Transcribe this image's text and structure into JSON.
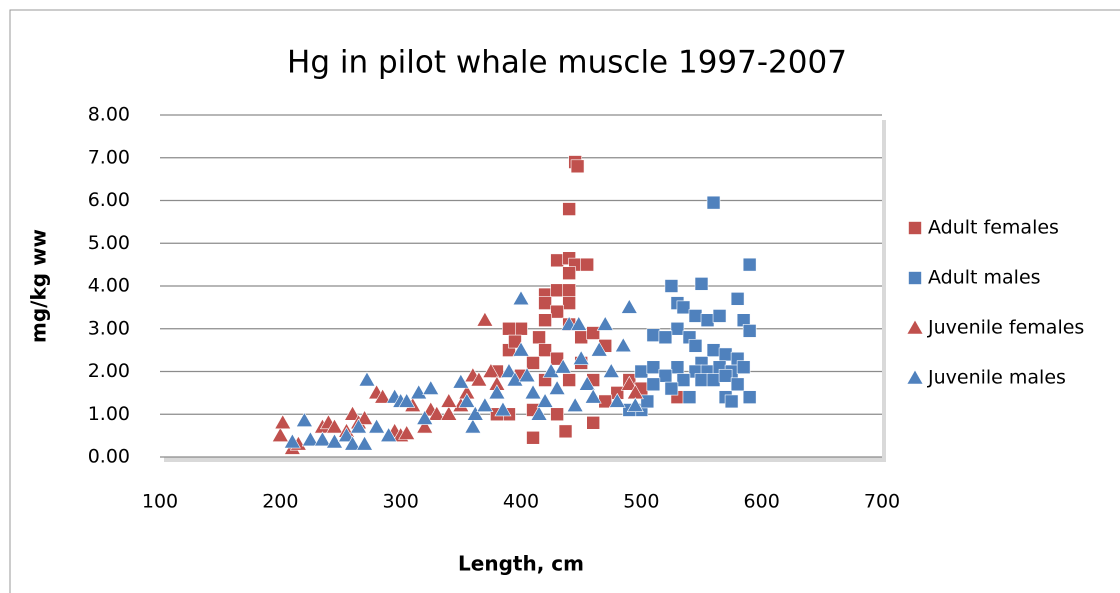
{
  "chart_data": {
    "type": "scatter",
    "title": "Hg in pilot whale muscle 1997-2007",
    "x_label": "Length, cm",
    "y_label": "mg/kg ww",
    "xlim": [
      100,
      700
    ],
    "xticks": [
      100,
      200,
      300,
      400,
      500,
      600,
      700
    ],
    "ylim": [
      0,
      8
    ],
    "yticks": [
      {
        "value": 0,
        "label": "0.00"
      },
      {
        "value": 1,
        "label": "1.00"
      },
      {
        "value": 2,
        "label": "2.00"
      },
      {
        "value": 3,
        "label": "3.00"
      },
      {
        "value": 4,
        "label": "4.00"
      },
      {
        "value": 5,
        "label": "5.00"
      },
      {
        "value": 6,
        "label": "6.00"
      },
      {
        "value": 7,
        "label": "7.00"
      },
      {
        "value": 8,
        "label": "8.00"
      }
    ],
    "grid": true,
    "legend": "right",
    "series": [
      {
        "name": "Adult females",
        "color": "#c0504d",
        "marker": "square",
        "x": [
          445,
          447,
          440,
          430,
          440,
          445,
          455,
          440,
          420,
          430,
          440,
          420,
          440,
          430,
          420,
          440,
          400,
          390,
          415,
          450,
          460,
          470,
          390,
          420,
          410,
          430,
          450,
          380,
          400,
          420,
          440,
          460,
          490,
          500,
          480,
          530,
          390,
          410,
          380,
          430,
          410,
          437,
          460,
          470,
          395
        ],
        "values": [
          6.9,
          6.8,
          5.8,
          4.6,
          4.65,
          4.5,
          4.5,
          4.3,
          3.8,
          3.9,
          3.9,
          3.6,
          3.6,
          3.4,
          3.2,
          3.1,
          3.0,
          3.0,
          2.8,
          2.8,
          2.9,
          2.6,
          2.5,
          2.5,
          2.2,
          2.3,
          2.2,
          2.0,
          1.9,
          1.8,
          1.8,
          1.8,
          1.8,
          1.6,
          1.5,
          1.4,
          1.0,
          1.1,
          1.0,
          1.0,
          0.45,
          0.6,
          0.8,
          1.3,
          2.7
        ]
      },
      {
        "name": "Adult males",
        "color": "#4f81bd",
        "marker": "square",
        "x": [
          560,
          590,
          525,
          550,
          530,
          535,
          580,
          545,
          555,
          565,
          585,
          590,
          530,
          540,
          510,
          520,
          545,
          560,
          570,
          580,
          550,
          500,
          510,
          530,
          545,
          555,
          565,
          575,
          585,
          520,
          535,
          550,
          560,
          570,
          510,
          525,
          540,
          570,
          575,
          590,
          500,
          505,
          580,
          490
        ],
        "values": [
          5.95,
          4.5,
          4.0,
          4.05,
          3.6,
          3.5,
          3.7,
          3.3,
          3.2,
          3.3,
          3.2,
          2.95,
          3.0,
          2.8,
          2.85,
          2.8,
          2.6,
          2.5,
          2.4,
          2.3,
          2.2,
          2.0,
          2.1,
          2.1,
          2.0,
          2.0,
          2.1,
          2.0,
          2.1,
          1.9,
          1.8,
          1.8,
          1.8,
          1.9,
          1.7,
          1.6,
          1.4,
          1.4,
          1.3,
          1.4,
          1.1,
          1.3,
          1.7,
          1.1
        ]
      },
      {
        "name": "Juvenile females",
        "color": "#c0504d",
        "marker": "triangle",
        "x": [
          200,
          202,
          210,
          215,
          225,
          235,
          240,
          245,
          255,
          260,
          265,
          270,
          280,
          285,
          295,
          300,
          305,
          310,
          320,
          325,
          330,
          340,
          350,
          355,
          360,
          370,
          365,
          375,
          380,
          490,
          495,
          340
        ],
        "values": [
          0.5,
          0.8,
          0.2,
          0.3,
          0.4,
          0.7,
          0.8,
          0.7,
          0.6,
          1.0,
          0.8,
          0.9,
          1.5,
          1.4,
          0.6,
          0.5,
          0.55,
          1.2,
          0.7,
          1.1,
          1.0,
          1.0,
          1.2,
          1.5,
          1.9,
          3.2,
          1.8,
          2.0,
          1.7,
          1.7,
          1.5,
          1.3
        ]
      },
      {
        "name": "Juvenile males",
        "color": "#4f81bd",
        "marker": "triangle",
        "x": [
          210,
          220,
          225,
          235,
          245,
          255,
          260,
          265,
          270,
          272,
          280,
          290,
          295,
          300,
          305,
          315,
          325,
          320,
          350,
          355,
          360,
          362,
          370,
          380,
          385,
          390,
          395,
          400,
          400,
          405,
          410,
          415,
          420,
          425,
          430,
          435,
          440,
          445,
          448,
          450,
          455,
          460,
          465,
          470,
          475,
          480,
          485,
          490,
          495
        ],
        "values": [
          0.35,
          0.85,
          0.4,
          0.4,
          0.35,
          0.5,
          0.3,
          0.7,
          0.3,
          1.8,
          0.7,
          0.5,
          1.4,
          1.3,
          1.3,
          1.5,
          1.6,
          0.9,
          1.75,
          1.3,
          0.7,
          1.0,
          1.2,
          1.5,
          1.1,
          2.0,
          1.8,
          3.7,
          2.5,
          1.9,
          1.5,
          1.0,
          1.3,
          2.0,
          1.6,
          2.1,
          3.1,
          1.2,
          3.1,
          2.3,
          1.7,
          1.4,
          2.5,
          3.1,
          2.0,
          1.3,
          2.6,
          3.5,
          1.2
        ]
      }
    ]
  }
}
